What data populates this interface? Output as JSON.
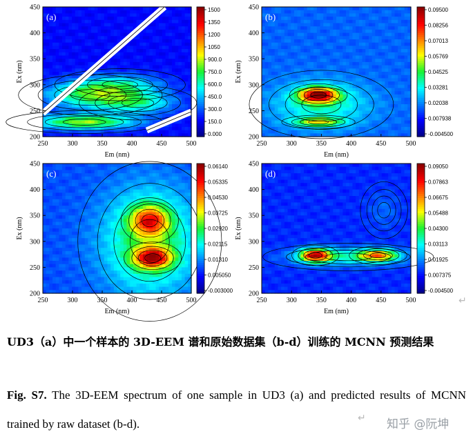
{
  "chart_data": [
    {
      "type": "heatmap",
      "label": "(a)",
      "xlabel": "Em (nm)",
      "ylabel": "Ex (nm)",
      "xlim": [
        250,
        500
      ],
      "ylim": [
        200,
        450
      ],
      "xticks": [
        250,
        300,
        350,
        400,
        450,
        500
      ],
      "yticks": [
        200,
        250,
        300,
        350,
        400,
        450
      ],
      "colorbar_ticks": [
        "1500",
        "1350",
        "1200",
        "1050",
        "900.0",
        "750.0",
        "600.0",
        "450.0",
        "300.0",
        "150.0",
        "0.000"
      ],
      "colorbar_range": [
        -50,
        1550
      ],
      "background": 150,
      "peaks": [
        {
          "em": 330,
          "ex": 280,
          "value": 560,
          "sx": 55,
          "sy": 18
        },
        {
          "em": 320,
          "ex": 228,
          "value": 700,
          "sx": 60,
          "sy": 10
        },
        {
          "em": 410,
          "ex": 265,
          "value": 420,
          "sx": 45,
          "sy": 15
        },
        {
          "em": 380,
          "ex": 300,
          "value": 340,
          "sx": 50,
          "sy": 14
        }
      ],
      "scatter_bands": true
    },
    {
      "type": "heatmap",
      "label": "(b)",
      "xlabel": "Em (nm)",
      "ylabel": "Ex (nm)",
      "xlim": [
        250,
        500
      ],
      "ylim": [
        200,
        450
      ],
      "xticks": [
        250,
        300,
        350,
        400,
        450,
        500
      ],
      "yticks": [
        200,
        250,
        300,
        350,
        400,
        450
      ],
      "colorbar_ticks": [
        "0.09500",
        "0.08256",
        "0.07013",
        "0.05769",
        "0.04525",
        "0.03281",
        "0.02038",
        "0.007938",
        "-0.004500"
      ],
      "colorbar_range": [
        -0.0045,
        0.095
      ],
      "background": 0.017,
      "peaks": [
        {
          "em": 345,
          "ex": 280,
          "value": 0.072,
          "sx": 22,
          "sy": 10
        },
        {
          "em": 345,
          "ex": 228,
          "value": 0.034,
          "sx": 28,
          "sy": 6
        },
        {
          "em": 350,
          "ex": 262,
          "value": 0.02,
          "sx": 55,
          "sy": 30
        }
      ]
    },
    {
      "type": "heatmap",
      "label": "(c)",
      "xlabel": "Em (nm)",
      "ylabel": "Ex (nm)",
      "xlim": [
        250,
        500
      ],
      "ylim": [
        200,
        450
      ],
      "xticks": [
        250,
        300,
        350,
        400,
        450,
        500
      ],
      "yticks": [
        200,
        250,
        300,
        350,
        400,
        450
      ],
      "colorbar_ticks": [
        "0.06140",
        "0.05335",
        "0.04530",
        "0.03725",
        "0.02920",
        "0.02115",
        "0.01310",
        "0.005050",
        "-0.003000"
      ],
      "colorbar_range": [
        -0.003,
        0.0614
      ],
      "background": 0.0095,
      "peaks": [
        {
          "em": 435,
          "ex": 268,
          "value": 0.036,
          "sx": 22,
          "sy": 14
        },
        {
          "em": 430,
          "ex": 340,
          "value": 0.03,
          "sx": 22,
          "sy": 20
        },
        {
          "em": 430,
          "ex": 300,
          "value": 0.02,
          "sx": 55,
          "sy": 70
        }
      ]
    },
    {
      "type": "heatmap",
      "label": "(d)",
      "xlabel": "Em (nm)",
      "ylabel": "Ex (nm)",
      "xlim": [
        250,
        500
      ],
      "ylim": [
        200,
        450
      ],
      "xticks": [
        250,
        300,
        350,
        400,
        450,
        500
      ],
      "yticks": [
        200,
        250,
        300,
        350,
        400,
        450
      ],
      "colorbar_ticks": [
        "0.09050",
        "0.07863",
        "0.06675",
        "0.05488",
        "0.04300",
        "0.03113",
        "0.01925",
        "0.007375",
        "-0.004500"
      ],
      "colorbar_range": [
        -0.0045,
        0.0905
      ],
      "background": 0.0105,
      "peaks": [
        {
          "em": 340,
          "ex": 273,
          "value": 0.064,
          "sx": 18,
          "sy": 9
        },
        {
          "em": 445,
          "ex": 273,
          "value": 0.046,
          "sx": 22,
          "sy": 8
        },
        {
          "em": 395,
          "ex": 270,
          "value": 0.022,
          "sx": 65,
          "sy": 12
        },
        {
          "em": 455,
          "ex": 360,
          "value": 0.006,
          "sx": 18,
          "sy": 25
        }
      ]
    }
  ],
  "caption": {
    "chinese": "UD3（a）中一个样本的 3D-EEM 谱和原始数据集（b-d）训练的 MCNN 预测结果",
    "fig_label": "Fig. S7.",
    "english": " The 3D-EEM spectrum of one sample in UD3 (a) and predicted results of MCNN trained by raw dataset (b-d).",
    "paragraph_mark": "↵"
  },
  "watermark": "知乎 @阮坤",
  "colors": {
    "background": "#ffffff",
    "axis": "#000000",
    "contour": "#000000"
  }
}
